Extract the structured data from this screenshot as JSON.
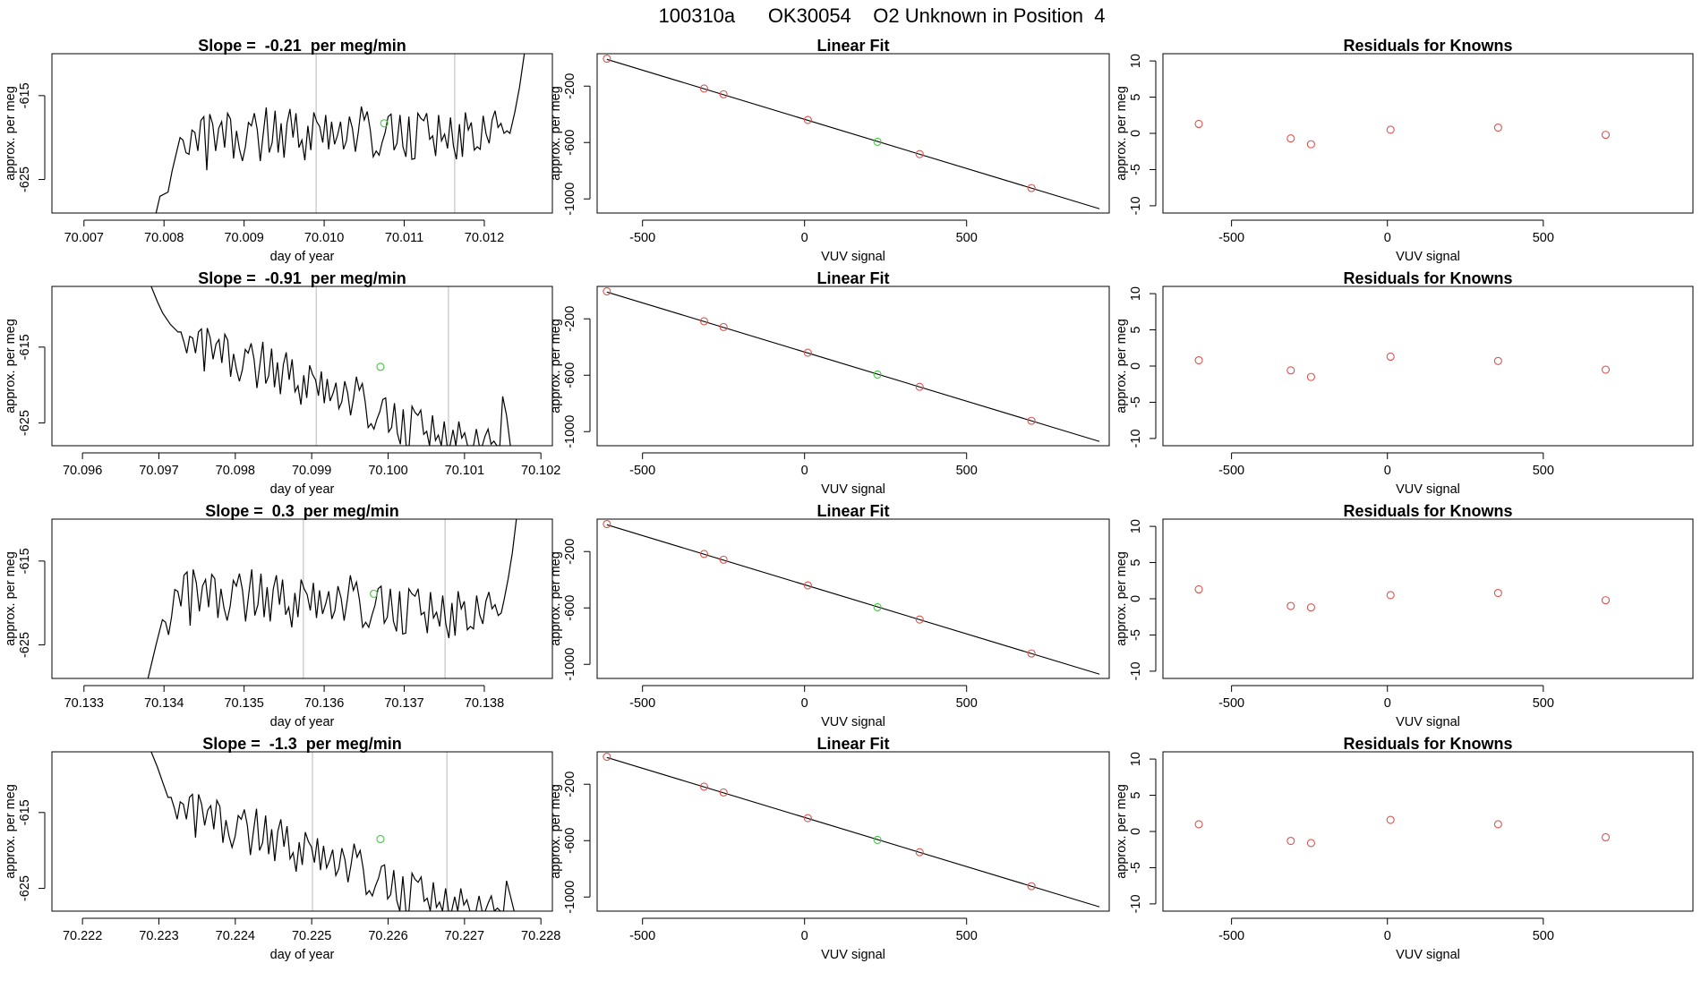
{
  "page_title": "100310a      OK30054    O2 Unknown in Position  4",
  "colors": {
    "line": "#000000",
    "known": "#d9534f",
    "unknown": "#3ec83e",
    "vline": "#c8c8c8",
    "frame": "#000000"
  },
  "chart_data": [
    {
      "type": "line",
      "title": "Slope =  -0.21  per meg/min",
      "xlabel": "day of year",
      "ylabel": "approx. per meg",
      "xlim": [
        70.0066,
        70.01285
      ],
      "ylim": [
        -629,
        -610
      ],
      "xticks": [
        "70.007",
        "70.008",
        "70.009",
        "70.010",
        "70.011",
        "70.012"
      ],
      "yticks": [
        "-615",
        "-625"
      ],
      "vlines": [
        70.0099,
        70.01163
      ],
      "unknown_point": {
        "x": 70.01075,
        "y": -618.3
      },
      "start": 70.0079,
      "end": 70.0125,
      "low": -629,
      "high": -610,
      "intro": [
        [
          70.0079,
          -629
        ],
        [
          70.00795,
          -627
        ],
        [
          70.00805,
          -626.5
        ],
        [
          70.0081,
          -624
        ],
        [
          70.0082,
          -620
        ]
      ],
      "outro": [
        [
          70.01232,
          -619.5
        ],
        [
          70.01238,
          -617
        ],
        [
          70.01244,
          -614
        ],
        [
          70.0125,
          -610
        ]
      ],
      "series": [
        -620.3,
        -621.8,
        -622.0,
        -619.1,
        -619.4,
        -621.6,
        -618.0,
        -617.5,
        -623.9,
        -617.2,
        -618.4,
        -621.6,
        -618.9,
        -618.1,
        -621.2,
        -617.1,
        -617.8,
        -622.5,
        -619.2,
        -621.4,
        -622.8,
        -621.1,
        -618.2,
        -618.6,
        -617.1,
        -619.1,
        -622.8,
        -619.5,
        -616.4,
        -621.8,
        -620.6,
        -616.8,
        -621.8,
        -618.3,
        -622.4,
        -618.3,
        -616.6,
        -620.0,
        -617.1,
        -621.2,
        -620.3,
        -622.7,
        -618.6,
        -621.5,
        -617.0,
        -618.1,
        -618.7,
        -620.6,
        -617.3,
        -621.4,
        -618.1,
        -620.8,
        -619.7,
        -618.1,
        -621.4,
        -620.4,
        -617.5,
        -618.9,
        -621.7,
        -619.3,
        -616.3,
        -617.9,
        -616.9,
        -619.1,
        -622.3,
        -621.6,
        -622.1,
        -620.6,
        -619.4,
        -617.5,
        -617.2,
        -621.5,
        -620.7,
        -617.3,
        -621.1,
        -622.3,
        -617.5,
        -622.6,
        -622.5,
        -617.1,
        -617.7,
        -618.0,
        -617.1,
        -620.2,
        -619.8,
        -622.2,
        -617.3,
        -620.4,
        -619.6,
        -621.3,
        -617.6,
        -621.0,
        -622.6,
        -618.4,
        -622.3,
        -617.0,
        -619.1,
        -618.2,
        -621.5,
        -621.1,
        -621.4,
        -617.4,
        -619.6,
        -620.7,
        -617.9,
        -616.8,
        -618.8,
        -618.3,
        -619.5,
        -619.2
      ]
    },
    {
      "type": "scatter",
      "title": "Linear Fit",
      "xlabel": "VUV signal",
      "ylabel": "approx. per meg",
      "xlim": [
        -640,
        940
      ],
      "ylim": [
        -1100,
        30
      ],
      "xticks": [
        "-500",
        "0",
        "500"
      ],
      "yticks": [
        "-200",
        "-600",
        "-1000"
      ],
      "fit": [
        [
          -610,
          -10
        ],
        [
          910,
          -1070
        ]
      ],
      "knowns": [
        [
          -610,
          -5
        ],
        [
          -310,
          -217
        ],
        [
          -250,
          -258
        ],
        [
          10,
          -440
        ],
        [
          355,
          -682
        ],
        [
          700,
          -923
        ]
      ],
      "unknown": [
        [
          225,
          -595
        ]
      ]
    },
    {
      "type": "scatter",
      "title": "Residuals for Knowns",
      "xlabel": "VUV signal",
      "ylabel": "approx. per meg",
      "xlim": [
        -720,
        980
      ],
      "ylim": [
        -11,
        11
      ],
      "xticks": [
        "-500",
        "0",
        "500"
      ],
      "yticks": [
        "10",
        "5",
        "0",
        "-5",
        "-10"
      ],
      "points": [
        [
          -605,
          1.3
        ],
        [
          -310,
          -0.7
        ],
        [
          -245,
          -1.5
        ],
        [
          10,
          0.5
        ],
        [
          355,
          0.8
        ],
        [
          700,
          -0.2
        ]
      ]
    },
    {
      "type": "line",
      "title": "Slope =  -0.91  per meg/min",
      "xlabel": "day of year",
      "ylabel": "approx. per meg",
      "xlim": [
        70.0956,
        70.10215
      ],
      "ylim": [
        -628,
        -607
      ],
      "xticks": [
        "70.096",
        "70.097",
        "70.098",
        "70.099",
        "70.100",
        "70.101",
        "70.102"
      ],
      "yticks": [
        "-615",
        "-625"
      ],
      "vlines": [
        70.09906,
        70.10079
      ],
      "unknown_point": {
        "x": 70.0999,
        "y": -617.6
      },
      "start": 70.0969,
      "end": 70.1016,
      "low": -628,
      "high": -607,
      "intro": [
        [
          70.0969,
          -607
        ],
        [
          70.09698,
          -609
        ],
        [
          70.09705,
          -610.5
        ],
        [
          70.09715,
          -612
        ],
        [
          70.09725,
          -613
        ]
      ],
      "outro": [
        [
          70.1015,
          -621.5
        ],
        [
          70.10155,
          -624
        ],
        [
          70.1016,
          -628
        ]
      ],
      "series": [
        -613.0,
        -614.3,
        -615.8,
        -613.6,
        -613.8,
        -615.8,
        -613.0,
        -612.6,
        -618.2,
        -612.5,
        -613.8,
        -616.6,
        -614.6,
        -614.0,
        -617.1,
        -613.3,
        -614.1,
        -618.9,
        -615.9,
        -618.0,
        -619.5,
        -618.0,
        -615.3,
        -615.8,
        -614.5,
        -616.6,
        -620.4,
        -617.3,
        -614.3,
        -619.8,
        -618.8,
        -615.2,
        -620.3,
        -617.0,
        -621.2,
        -617.3,
        -615.7,
        -619.3,
        -616.6,
        -620.9,
        -620.1,
        -622.6,
        -618.7,
        -621.7,
        -617.4,
        -618.6,
        -619.3,
        -621.4,
        -618.2,
        -622.4,
        -619.2,
        -622.1,
        -621.1,
        -619.7,
        -623.1,
        -622.2,
        -619.5,
        -621.0,
        -624.0,
        -621.7,
        -618.9,
        -620.7,
        -619.8,
        -622.2,
        -625.6,
        -625.1,
        -625.8,
        -624.5,
        -623.5,
        -621.9,
        -621.7,
        -626.2,
        -625.6,
        -622.4,
        -626.4,
        -627.8,
        -623.2,
        -628.0,
        -628.0,
        -622.8,
        -623.6,
        -624.0,
        -623.3,
        -626.5,
        -626.1,
        -628.0,
        -624.0,
        -627.3,
        -626.6,
        -628.0,
        -624.8,
        -628.0,
        -628.0,
        -625.9,
        -628.0,
        -624.8,
        -627.0,
        -626.3,
        -628.0,
        -628.0,
        -628.0,
        -625.8,
        -628.0,
        -628.0,
        -626.7,
        -625.8,
        -627.8,
        -627.4,
        -628.0,
        -628.0
      ]
    },
    {
      "type": "scatter",
      "title": "Linear Fit",
      "xlabel": "VUV signal",
      "ylabel": "approx. per meg",
      "xlim": [
        -640,
        940
      ],
      "ylim": [
        -1100,
        30
      ],
      "xticks": [
        "-500",
        "0",
        "500"
      ],
      "yticks": [
        "-200",
        "-600",
        "-1000"
      ],
      "fit": [
        [
          -610,
          -10
        ],
        [
          910,
          -1070
        ]
      ],
      "knowns": [
        [
          -610,
          -5
        ],
        [
          -310,
          -217
        ],
        [
          -250,
          -258
        ],
        [
          10,
          -440
        ],
        [
          355,
          -682
        ],
        [
          700,
          -923
        ]
      ],
      "unknown": [
        [
          225,
          -595
        ]
      ]
    },
    {
      "type": "scatter",
      "title": "Residuals for Knowns",
      "xlabel": "VUV signal",
      "ylabel": "approx. per meg",
      "xlim": [
        -720,
        980
      ],
      "ylim": [
        -11,
        11
      ],
      "xticks": [
        "-500",
        "0",
        "500"
      ],
      "yticks": [
        "10",
        "5",
        "0",
        "-5",
        "-10"
      ],
      "points": [
        [
          -605,
          0.8
        ],
        [
          -310,
          -0.6
        ],
        [
          -245,
          -1.5
        ],
        [
          10,
          1.3
        ],
        [
          355,
          0.7
        ],
        [
          700,
          -0.5
        ]
      ]
    },
    {
      "type": "line",
      "title": "Slope =  0.3  per meg/min",
      "xlabel": "day of year",
      "ylabel": "approx. per meg",
      "xlim": [
        70.1326,
        70.13885
      ],
      "ylim": [
        -629,
        -610
      ],
      "xticks": [
        "70.133",
        "70.134",
        "70.135",
        "70.136",
        "70.137",
        "70.138"
      ],
      "yticks": [
        "-615",
        "-625"
      ],
      "vlines": [
        70.13574,
        70.13751
      ],
      "unknown_point": {
        "x": 70.13662,
        "y": -618.9
      },
      "start": 70.1338,
      "end": 70.1384,
      "low": -629,
      "high": -610,
      "intro": [
        [
          70.1338,
          -629
        ],
        [
          70.13385,
          -627
        ],
        [
          70.1339,
          -625
        ],
        [
          70.13398,
          -622
        ]
      ],
      "outro": [
        [
          70.13825,
          -619.5
        ],
        [
          70.1383,
          -617
        ],
        [
          70.13835,
          -614
        ],
        [
          70.1384,
          -610
        ]
      ],
      "series": [
        -622.3,
        -623.8,
        -621.6,
        -618.4,
        -618.6,
        -620.4,
        -616.7,
        -616.3,
        -622.7,
        -616.0,
        -617.6,
        -621.0,
        -618.0,
        -617.2,
        -620.5,
        -616.6,
        -617.1,
        -621.8,
        -618.3,
        -620.6,
        -622.1,
        -620.4,
        -617.3,
        -618.0,
        -616.5,
        -618.5,
        -622.2,
        -619.0,
        -616.0,
        -621.5,
        -620.2,
        -616.5,
        -621.7,
        -618.1,
        -622.2,
        -618.3,
        -616.7,
        -620.2,
        -617.2,
        -621.4,
        -620.5,
        -622.9,
        -618.8,
        -621.7,
        -617.2,
        -618.3,
        -619.0,
        -620.9,
        -617.6,
        -621.8,
        -618.5,
        -621.3,
        -620.1,
        -618.6,
        -621.9,
        -620.9,
        -618.0,
        -619.4,
        -622.1,
        -619.7,
        -616.7,
        -618.5,
        -617.5,
        -619.7,
        -622.9,
        -622.3,
        -622.9,
        -621.5,
        -620.3,
        -618.3,
        -618.0,
        -622.4,
        -621.7,
        -618.3,
        -622.2,
        -623.4,
        -618.6,
        -623.7,
        -623.6,
        -618.3,
        -618.9,
        -619.2,
        -618.3,
        -621.4,
        -621.1,
        -623.6,
        -618.7,
        -621.8,
        -621.1,
        -622.8,
        -619.1,
        -622.5,
        -624.2,
        -620.0,
        -623.9,
        -618.6,
        -620.7,
        -619.8,
        -623.2,
        -622.8,
        -623.1,
        -619.1,
        -621.4,
        -622.5,
        -619.8,
        -618.7,
        -620.7,
        -620.2,
        -621.5,
        -621.2
      ]
    },
    {
      "type": "scatter",
      "title": "Linear Fit",
      "xlabel": "VUV signal",
      "ylabel": "approx. per meg",
      "xlim": [
        -640,
        940
      ],
      "ylim": [
        -1100,
        30
      ],
      "xticks": [
        "-500",
        "0",
        "500"
      ],
      "yticks": [
        "-200",
        "-600",
        "-1000"
      ],
      "fit": [
        [
          -610,
          -10
        ],
        [
          910,
          -1070
        ]
      ],
      "knowns": [
        [
          -610,
          -5
        ],
        [
          -310,
          -217
        ],
        [
          -250,
          -258
        ],
        [
          10,
          -440
        ],
        [
          355,
          -682
        ],
        [
          700,
          -923
        ]
      ],
      "unknown": [
        [
          225,
          -595
        ]
      ]
    },
    {
      "type": "scatter",
      "title": "Residuals for Knowns",
      "xlabel": "VUV signal",
      "ylabel": "approx. per meg",
      "xlim": [
        -720,
        980
      ],
      "ylim": [
        -11,
        11
      ],
      "xticks": [
        "-500",
        "0",
        "500"
      ],
      "yticks": [
        "10",
        "5",
        "0",
        "-5",
        "-10"
      ],
      "points": [
        [
          -605,
          1.3
        ],
        [
          -310,
          -1.0
        ],
        [
          -245,
          -1.2
        ],
        [
          10,
          0.5
        ],
        [
          355,
          0.8
        ],
        [
          700,
          -0.2
        ]
      ]
    },
    {
      "type": "line",
      "title": "Slope =  -1.3  per meg/min",
      "xlabel": "day of year",
      "ylabel": "approx. per meg",
      "xlim": [
        70.2216,
        70.22815
      ],
      "ylim": [
        -628,
        -607
      ],
      "xticks": [
        "70.222",
        "70.223",
        "70.224",
        "70.225",
        "70.226",
        "70.227",
        "70.228"
      ],
      "yticks": [
        "-615",
        "-625"
      ],
      "vlines": [
        70.22501,
        70.22677
      ],
      "unknown_point": {
        "x": 70.2259,
        "y": -618.5
      },
      "start": 70.2229,
      "end": 70.22765,
      "low": -628,
      "high": -607,
      "intro": [
        [
          70.2229,
          -607
        ],
        [
          70.22298,
          -609
        ],
        [
          70.22305,
          -611
        ],
        [
          70.22312,
          -613
        ]
      ],
      "outro": [
        [
          70.22755,
          -624
        ],
        [
          70.2276,
          -626
        ],
        [
          70.22765,
          -628
        ]
      ],
      "series": [
        -613.0,
        -614.3,
        -615.9,
        -613.6,
        -613.9,
        -615.9,
        -613.0,
        -612.6,
        -618.3,
        -612.6,
        -613.9,
        -616.7,
        -614.7,
        -614.1,
        -617.2,
        -613.4,
        -614.2,
        -619.0,
        -616.0,
        -618.1,
        -619.6,
        -618.1,
        -615.4,
        -615.9,
        -614.6,
        -616.7,
        -620.6,
        -617.5,
        -614.5,
        -620.0,
        -619.0,
        -615.4,
        -620.5,
        -617.2,
        -621.4,
        -617.5,
        -615.9,
        -619.5,
        -616.8,
        -621.1,
        -620.3,
        -622.8,
        -618.9,
        -621.9,
        -617.6,
        -618.8,
        -619.5,
        -621.6,
        -618.4,
        -622.6,
        -619.4,
        -622.3,
        -621.3,
        -619.9,
        -623.3,
        -622.4,
        -619.7,
        -621.2,
        -624.2,
        -621.9,
        -619.1,
        -620.9,
        -620.0,
        -622.4,
        -625.8,
        -625.3,
        -626.0,
        -624.7,
        -623.7,
        -622.1,
        -621.9,
        -626.4,
        -625.8,
        -622.6,
        -626.6,
        -628.0,
        -623.4,
        -628.0,
        -628.0,
        -623.0,
        -623.8,
        -624.2,
        -623.5,
        -626.7,
        -626.3,
        -628.0,
        -624.2,
        -627.5,
        -626.8,
        -628.0,
        -625.0,
        -628.0,
        -628.0,
        -626.1,
        -628.0,
        -625.0,
        -627.2,
        -626.5,
        -628.0,
        -628.0,
        -628.0,
        -626.0,
        -628.0,
        -628.0,
        -626.9,
        -626.0,
        -628.0,
        -627.6,
        -628.0,
        -628.0
      ]
    },
    {
      "type": "scatter",
      "title": "Linear Fit",
      "xlabel": "VUV signal",
      "ylabel": "approx. per meg",
      "xlim": [
        -640,
        940
      ],
      "ylim": [
        -1100,
        30
      ],
      "xticks": [
        "-500",
        "0",
        "500"
      ],
      "yticks": [
        "-200",
        "-600",
        "-1000"
      ],
      "fit": [
        [
          -610,
          -10
        ],
        [
          910,
          -1070
        ]
      ],
      "knowns": [
        [
          -610,
          -5
        ],
        [
          -310,
          -217
        ],
        [
          -250,
          -258
        ],
        [
          10,
          -440
        ],
        [
          355,
          -682
        ],
        [
          700,
          -923
        ]
      ],
      "unknown": [
        [
          225,
          -595
        ]
      ]
    },
    {
      "type": "scatter",
      "title": "Residuals for Knowns",
      "xlabel": "VUV signal",
      "ylabel": "approx. per meg",
      "xlim": [
        -720,
        980
      ],
      "ylim": [
        -11,
        11
      ],
      "xticks": [
        "-500",
        "0",
        "500"
      ],
      "yticks": [
        "10",
        "5",
        "0",
        "-5",
        "-10"
      ],
      "points": [
        [
          -605,
          1.0
        ],
        [
          -310,
          -1.3
        ],
        [
          -245,
          -1.6
        ],
        [
          10,
          1.6
        ],
        [
          355,
          1.0
        ],
        [
          700,
          -0.8
        ]
      ]
    }
  ]
}
